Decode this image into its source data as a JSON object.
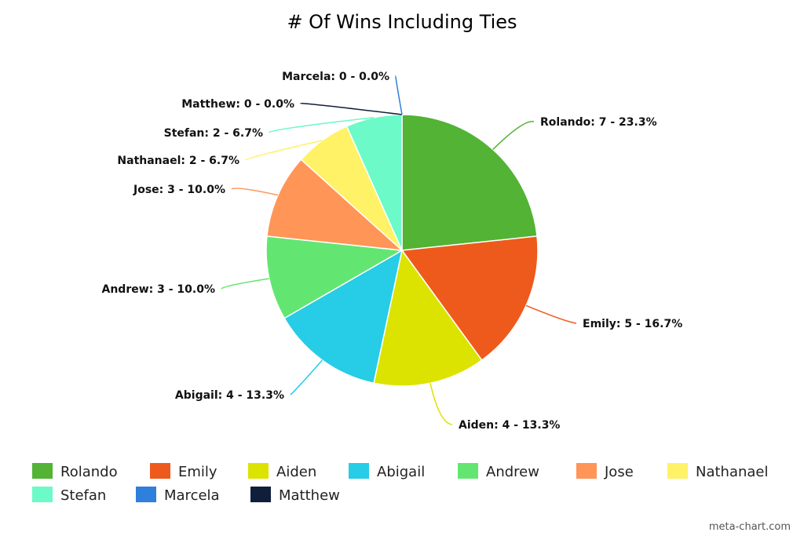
{
  "chart_data": {
    "type": "pie",
    "title": "# Of Wins Including Ties",
    "categories": [
      "Rolando",
      "Emily",
      "Aiden",
      "Abigail",
      "Andrew",
      "Jose",
      "Nathanael",
      "Stefan",
      "Matthew",
      "Marcela"
    ],
    "values": [
      7,
      5,
      4,
      4,
      3,
      3,
      2,
      2,
      0,
      0
    ],
    "labels": [
      "Rolando: 7 - 23.3%",
      "Emily: 5 - 16.7%",
      "Aiden: 4 - 13.3%",
      "Abigail: 4 - 13.3%",
      "Andrew: 3 - 10.0%",
      "Jose: 3 - 10.0%",
      "Nathanael: 2 - 6.7%",
      "Stefan: 2 - 6.7%",
      "Matthew: 0 - 0.0%",
      "Marcela: 0 - 0.0%"
    ],
    "colors": [
      "#52b334",
      "#ee5a1c",
      "#dce300",
      "#27cce6",
      "#63e671",
      "#ff9557",
      "#fff266",
      "#6bfac8",
      "#0f1f3b",
      "#2f7fdc"
    ],
    "legend": {
      "placement": "bottom",
      "entries": [
        "Rolando",
        "Emily",
        "Aiden",
        "Abigail",
        "Andrew",
        "Jose",
        "Nathanael",
        "Stefan",
        "Marcela",
        "Matthew"
      ],
      "colors": [
        "#52b334",
        "#ee5a1c",
        "#dce300",
        "#27cce6",
        "#63e671",
        "#ff9557",
        "#fff266",
        "#6bfac8",
        "#2f7fdc",
        "#0f1f3b"
      ]
    }
  },
  "credit": "meta-chart.com"
}
